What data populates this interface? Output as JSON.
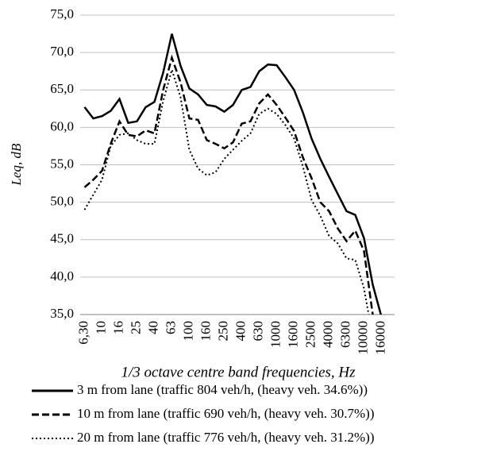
{
  "chart_data": {
    "type": "line",
    "xlabel": "1/3 octave centre band  frequencies, Hz",
    "ylabel": "Leq, dB",
    "categories": [
      "6,30",
      null,
      "10",
      null,
      "16",
      null,
      "25",
      null,
      "40",
      null,
      "63",
      null,
      "100",
      null,
      "160",
      null,
      "250",
      null,
      "400",
      null,
      "630",
      null,
      "1000",
      null,
      "1600",
      null,
      "2500",
      null,
      "4000",
      null,
      "6300",
      null,
      "10000",
      null,
      "16000",
      null
    ],
    "ylim": [
      35,
      75
    ],
    "yticks": [
      {
        "value": 35,
        "label": "35,0"
      },
      {
        "value": 40,
        "label": "40,0"
      },
      {
        "value": 45,
        "label": "45,0"
      },
      {
        "value": 50,
        "label": "50,0"
      },
      {
        "value": 55,
        "label": "55,0"
      },
      {
        "value": 60,
        "label": "60,0"
      },
      {
        "value": 65,
        "label": "65,0"
      },
      {
        "value": 70,
        "label": "70,0"
      },
      {
        "value": 75,
        "label": "75,0"
      }
    ],
    "grid": true,
    "series": [
      {
        "name": "3 m from lane  (traffic  804 veh/h, (heavy veh. 34.6%))",
        "color": "#000000",
        "dash": "solid",
        "values": [
          62.7,
          61.2,
          61.5,
          62.2,
          63.8,
          60.6,
          60.8,
          62.7,
          63.4,
          67.3,
          72.5,
          68.2,
          65.2,
          64.4,
          63.0,
          62.8,
          62.1,
          63.0,
          65.0,
          65.4,
          67.5,
          68.4,
          68.3,
          66.7,
          65.0,
          62.0,
          58.5,
          55.8,
          53.4,
          51.1,
          48.8,
          48.3,
          45.2,
          39.0,
          34.7,
          null
        ]
      },
      {
        "name": "10 m from lane (traffic 690 veh/h, (heavy veh. 30.7%))",
        "color": "#000000",
        "dash": "dash",
        "values": [
          52.0,
          53.0,
          54.2,
          57.8,
          60.8,
          59.0,
          58.8,
          59.6,
          59.2,
          65.0,
          69.3,
          66.0,
          61.2,
          61.0,
          58.3,
          57.8,
          57.2,
          58.0,
          60.5,
          60.8,
          63.2,
          64.4,
          63.0,
          61.3,
          59.5,
          56.0,
          53.2,
          50.0,
          48.8,
          46.5,
          44.8,
          46.2,
          43.5,
          35.0,
          30.0,
          null
        ]
      },
      {
        "name": "20 m from lane (traffic 776 veh/h, (heavy veh. 31.2%))",
        "color": "#000000",
        "dash": "dot",
        "values": [
          49.0,
          51.0,
          53.0,
          57.5,
          59.0,
          59.2,
          58.3,
          57.8,
          57.8,
          63.5,
          67.7,
          64.0,
          57.0,
          54.5,
          53.6,
          54.0,
          55.8,
          57.0,
          58.2,
          59.2,
          61.8,
          62.5,
          61.8,
          60.3,
          58.5,
          54.8,
          50.3,
          48.2,
          45.5,
          44.5,
          42.5,
          42.3,
          38.5,
          32.0,
          null,
          null
        ]
      }
    ]
  }
}
